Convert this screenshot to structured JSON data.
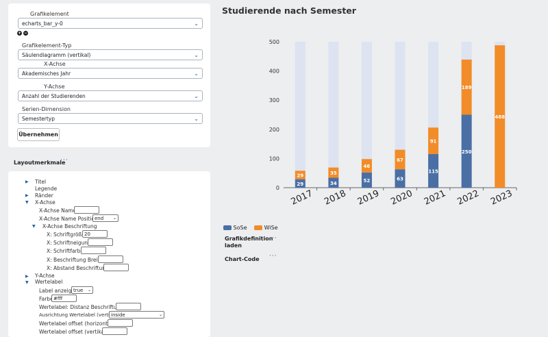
{
  "form": {
    "grafikelement_label": "Grafikelement",
    "grafikelement_value": "echarts_bar_y-0",
    "typ_label": "Grafikelement-Typ",
    "typ_value": "Säulendiagramm (vertikal)",
    "x_label": "X-Achse",
    "x_value": "Akademisches Jahr",
    "y_label": "Y-Achse",
    "y_value": "Anzahl der Studierenden",
    "series_label": "Serien-Dimension",
    "series_value": "Semestertyp",
    "apply_button": "Übernehmen"
  },
  "layout": {
    "title": "Layoutmerkmale",
    "tree": {
      "titel": "Titel",
      "legende": "Legende",
      "raender": "Ränder",
      "xachse": "X-Achse",
      "x_name": "X-Achse Name",
      "x_name_pos": "X-Achse Name Position",
      "x_name_pos_value": "end",
      "x_beschriftung": "X-Achse Beschriftung",
      "schriftgroesse": "X: Schriftgröße",
      "schriftgroesse_value": "20",
      "schriftneigung": "X: Schriftneigung",
      "schriftfarbe": "X: Schriftfarbe",
      "beschr_breite": "X: Beschriftung Breite",
      "abstand": "X: Abstand Beschriftung",
      "yachse": "Y-Achse",
      "wertelabel": "Wertelabel",
      "label_anzeigen": "Label anzeigen",
      "label_anzeigen_value": "true",
      "farbe": "Farbe",
      "farbe_value": "#fff",
      "distanz": "Wertelabel: Distanz Beschriftung",
      "ausrichtung": "Ausrichtung Wertelabel (vertikal)",
      "ausrichtung_value": "inside",
      "offset_h": "Wertelabel offset (horizontal)",
      "offset_v": "Wertelabel offset (vertikal)"
    }
  },
  "side": {
    "grafikdef": "Grafikdefinition laden",
    "chart_code": "Chart-Code"
  },
  "chart_data": {
    "type": "bar",
    "title": "Studierende nach Semester",
    "categories": [
      "2017",
      "2018",
      "2019",
      "2020",
      "2021",
      "2022",
      "2023"
    ],
    "series": [
      {
        "name": "SoSe",
        "values": [
          29,
          34,
          52,
          63,
          115,
          250,
          null
        ],
        "color": "#4a6fa5"
      },
      {
        "name": "WiSe",
        "values": [
          29,
          35,
          46,
          67,
          91,
          189,
          488
        ],
        "color": "#f28c28"
      }
    ],
    "background_bar_color": "#dde3f0",
    "ylim": [
      0,
      500
    ],
    "yticks": [
      0,
      100,
      200,
      300,
      400,
      500
    ],
    "label_color": "#ffffff",
    "legend_position": "bottom-left"
  }
}
